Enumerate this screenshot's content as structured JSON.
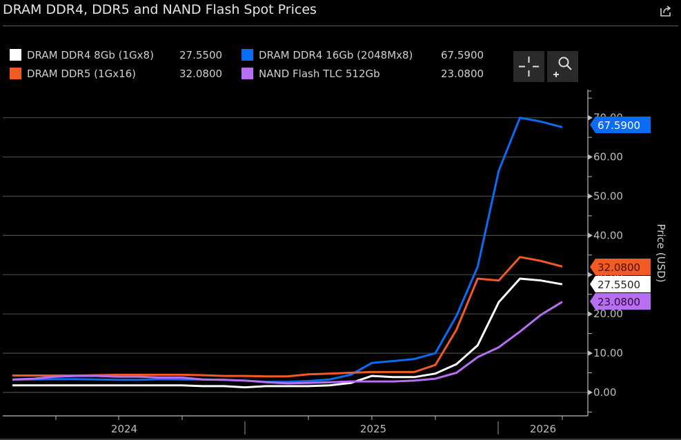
{
  "header": {
    "title": "DRAM DDR4, DDR5 and NAND Flash Spot Prices",
    "share_icon": "share-external-icon"
  },
  "toolbar": {
    "crosshair_icon": "crosshair-icon",
    "zoom_icon": "zoom-in-icon"
  },
  "legend": [
    {
      "name": "DRAM DDR4 8Gb (1Gx8)",
      "value": "27.5500",
      "color": "#ffffff"
    },
    {
      "name": "DRAM DDR4 16Gb (2048Mx8)",
      "value": "67.5900",
      "color": "#0a6cf5"
    },
    {
      "name": "DRAM DDR5 (1Gx16)",
      "value": "32.0800",
      "color": "#f25a23"
    },
    {
      "name": "NAND Flash TLC 512Gb",
      "value": "23.0800",
      "color": "#b86ef0"
    }
  ],
  "chart_data": {
    "type": "line",
    "title": "DRAM DDR4, DDR5 and NAND Flash Spot Prices",
    "xlabel": "",
    "ylabel": "Price (USD)",
    "ylim": [
      -4,
      76
    ],
    "y_ticks": [
      "0.00",
      "10.00",
      "20.00",
      "30.00",
      "40.00",
      "50.00",
      "60.00",
      "70.00"
    ],
    "y_tick_values": [
      0,
      10,
      20,
      30,
      40,
      50,
      60,
      70
    ],
    "x_tick_labels": [
      "2024",
      "2025",
      "2026"
    ],
    "x": [
      "2023-09",
      "2023-10",
      "2023-11",
      "2023-12",
      "2024-01",
      "2024-02",
      "2024-03",
      "2024-04",
      "2024-05",
      "2024-06",
      "2024-07",
      "2024-08",
      "2024-09",
      "2024-10",
      "2024-11",
      "2024-12",
      "2025-01",
      "2025-02",
      "2025-03",
      "2025-04",
      "2025-05",
      "2025-06",
      "2025-07",
      "2025-08",
      "2025-09",
      "2025-10",
      "2025-11",
      "2025-12",
      "2026-01"
    ],
    "grid": true,
    "legend_position": "top-left",
    "series": [
      {
        "name": "DRAM DDR4 16Gb (2048Mx8)",
        "color": "#0a6cf5",
        "last": "67.5900",
        "values": [
          3.2,
          3.3,
          3.4,
          3.4,
          3.3,
          3.2,
          3.2,
          3.4,
          3.3,
          3.3,
          3.2,
          3.0,
          2.7,
          2.7,
          2.9,
          3.3,
          4.5,
          7.5,
          8.0,
          8.5,
          10.0,
          19.5,
          32.0,
          56.5,
          70.0,
          69.0,
          67.59,
          null,
          null
        ]
      },
      {
        "name": "DRAM DDR5 (1Gx16)",
        "color": "#f25a23",
        "last": "32.0800",
        "values": [
          4.3,
          4.3,
          4.3,
          4.3,
          4.4,
          4.5,
          4.5,
          4.5,
          4.5,
          4.4,
          4.2,
          4.2,
          4.1,
          4.1,
          4.6,
          4.8,
          5.0,
          5.2,
          5.2,
          5.2,
          7.0,
          16.0,
          29.0,
          28.5,
          34.5,
          33.5,
          32.08,
          null,
          null
        ]
      },
      {
        "name": "DRAM DDR4 8Gb (1Gx8)",
        "color": "#ffffff",
        "last": "27.5500",
        "values": [
          1.8,
          1.8,
          1.8,
          1.8,
          1.8,
          1.8,
          1.8,
          1.8,
          1.8,
          1.6,
          1.6,
          1.3,
          1.6,
          1.6,
          1.6,
          1.8,
          2.4,
          4.2,
          3.9,
          3.9,
          4.8,
          7.2,
          12.0,
          23.0,
          29.0,
          28.5,
          27.55,
          null,
          null
        ]
      },
      {
        "name": "NAND Flash TLC 512Gb",
        "color": "#b86ef0",
        "last": "23.0800",
        "values": [
          3.3,
          3.5,
          4.0,
          4.2,
          4.2,
          4.0,
          4.0,
          3.8,
          3.8,
          3.3,
          3.2,
          3.0,
          2.6,
          2.3,
          2.4,
          2.6,
          2.8,
          2.8,
          2.8,
          3.0,
          3.5,
          5.0,
          9.0,
          11.5,
          15.5,
          19.8,
          23.08,
          null,
          null
        ]
      }
    ]
  }
}
